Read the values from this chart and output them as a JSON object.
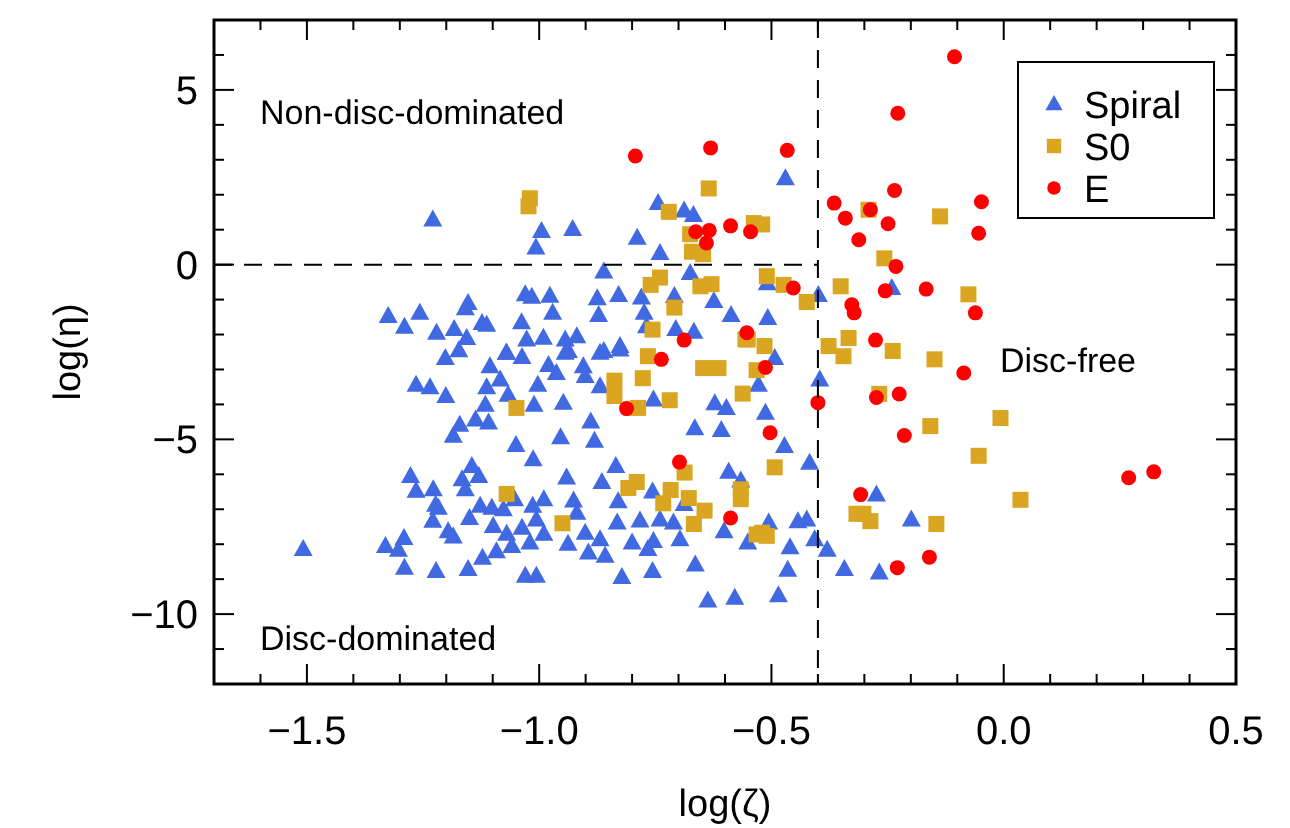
{
  "chart_data": {
    "type": "scatter",
    "xlabel": "log(ζ)",
    "ylabel": "log(η)",
    "xlim": [
      -1.7,
      0.5
    ],
    "ylim": [
      -12,
      7
    ],
    "xticks": [
      {
        "value": -1.6,
        "label": null
      },
      {
        "value": -1.5,
        "label": "−1.5"
      },
      {
        "value": -1.4,
        "label": null
      },
      {
        "value": -1.3,
        "label": null
      },
      {
        "value": -1.2,
        "label": null
      },
      {
        "value": -1.1,
        "label": null
      },
      {
        "value": -1.0,
        "label": "−1.0"
      },
      {
        "value": -0.9,
        "label": null
      },
      {
        "value": -0.8,
        "label": null
      },
      {
        "value": -0.7,
        "label": null
      },
      {
        "value": -0.6,
        "label": null
      },
      {
        "value": -0.5,
        "label": "−0.5"
      },
      {
        "value": -0.4,
        "label": null
      },
      {
        "value": -0.3,
        "label": null
      },
      {
        "value": -0.2,
        "label": null
      },
      {
        "value": -0.1,
        "label": null
      },
      {
        "value": 0,
        "label": "0.0"
      },
      {
        "value": 0.1,
        "label": null
      },
      {
        "value": 0.2,
        "label": null
      },
      {
        "value": 0.3,
        "label": null
      },
      {
        "value": 0.4,
        "label": null
      },
      {
        "value": 0.5,
        "label": "0.5"
      }
    ],
    "yticks": [
      {
        "value": -11,
        "label": null
      },
      {
        "value": -10,
        "label": "−10"
      },
      {
        "value": -9,
        "label": null
      },
      {
        "value": -8,
        "label": null
      },
      {
        "value": -7,
        "label": null
      },
      {
        "value": -6,
        "label": null
      },
      {
        "value": -5,
        "label": "−5"
      },
      {
        "value": -4,
        "label": null
      },
      {
        "value": -3,
        "label": null
      },
      {
        "value": -2,
        "label": null
      },
      {
        "value": -1,
        "label": null
      },
      {
        "value": 0,
        "label": "0"
      },
      {
        "value": 1,
        "label": null
      },
      {
        "value": 2,
        "label": null
      },
      {
        "value": 3,
        "label": null
      },
      {
        "value": 4,
        "label": null
      },
      {
        "value": 5,
        "label": "5"
      },
      {
        "value": 6,
        "label": null
      }
    ],
    "legend": "top right",
    "ref_lines": [
      {
        "axis": "x",
        "value": -0.4,
        "line_style": "dashed",
        "color": "#000000"
      },
      {
        "axis": "y",
        "value": 0,
        "line_style": "dashed",
        "color": "#000000"
      }
    ],
    "annotations": [
      "Non-disc-dominated",
      "Disc-dominated",
      "Disc-free"
    ],
    "series": [
      {
        "name": "Spiral",
        "color": "#4169e1",
        "marker": "triangle",
        "x": [
          -1.229,
          -0.995,
          -1.007,
          -0.928,
          -0.744,
          -0.688,
          -0.668,
          -0.789,
          -0.74,
          -0.861,
          -0.675,
          -1.03,
          -0.977,
          -0.875,
          -0.829,
          -0.78,
          -1.153,
          -1.325,
          -1.29,
          -1.257,
          -1.221,
          -1.183,
          -1.159,
          -1.123,
          -1.113,
          -1.038,
          -1.016,
          -0.971,
          -0.872,
          -0.774,
          -0.769,
          -0.706,
          -0.667,
          -0.587,
          -0.624,
          -0.709,
          -1.156,
          -1.027,
          -0.991,
          -0.944,
          -0.919,
          -0.861,
          -0.826,
          -1.07,
          -0.937,
          -0.47,
          -0.509,
          -0.399,
          -0.241,
          -0.508,
          -1.202,
          -1.173,
          -1.106,
          -1.071,
          -1.037,
          -0.98,
          -0.944,
          -0.905,
          -0.869,
          -0.826,
          -1.265,
          -1.235,
          -1.201,
          -1.113,
          -1.084,
          -1.067,
          -1.003,
          -0.963,
          -0.901,
          -0.869,
          -1.116,
          -1.011,
          -0.948,
          -1.171,
          -1.137,
          -1.109,
          -1.185,
          -1.05,
          -1.013,
          -0.954,
          -0.889,
          -0.881,
          -0.754,
          -0.665,
          -0.622,
          -0.608,
          -0.597,
          -1.277,
          -1.265,
          -1.228,
          -1.166,
          -1.145,
          -1.13,
          -1.159,
          -1.223,
          -1.217,
          -1.127,
          -1.102,
          -1.077,
          -1.053,
          -1.014,
          -0.99,
          -0.941,
          -0.926,
          -0.919,
          -0.865,
          -0.835,
          -0.83,
          -0.756,
          -0.688,
          -0.592,
          -0.566,
          -1.229,
          -1.196,
          -1.15,
          -1.099,
          -1.07,
          -1.037,
          -1.006,
          -0.99,
          -1.02,
          -1.059,
          -1.092,
          -1.122,
          -1.185,
          -1.291,
          -1.331,
          -1.303,
          -1.508,
          -1.29,
          -1.222,
          -1.153,
          -1.03,
          -1.006,
          -0.938,
          -0.901,
          -0.869,
          -0.894,
          -0.858,
          -0.822,
          -0.832,
          -0.783,
          -0.74,
          -0.711,
          -0.8,
          -0.754,
          -0.697,
          -0.766,
          -0.756,
          -0.664,
          -0.602,
          -0.637,
          -0.579,
          -0.551,
          -0.396,
          -0.528,
          -0.513,
          -0.472,
          -0.418,
          -0.274,
          -0.506,
          -0.443,
          -0.424,
          -0.199,
          -0.46,
          -0.407,
          -0.38,
          -0.465,
          -0.343,
          -0.268,
          -0.485,
          -0.493
        ],
        "values": [
          1.29,
          0.96,
          0.49,
          1.02,
          1.76,
          1.55,
          1.42,
          0.77,
          0.33,
          -0.2,
          -0.24,
          -0.85,
          -0.89,
          -0.96,
          -0.87,
          -0.94,
          -1.1,
          -1.47,
          -1.78,
          -1.38,
          -1.95,
          -1.84,
          -1.25,
          -1.67,
          -1.72,
          -1.65,
          -0.92,
          -1.38,
          -1.44,
          -1.38,
          -1.76,
          -1.84,
          -1.92,
          -1.44,
          -1.04,
          -0.9,
          -2.1,
          -2.14,
          -2.09,
          -2.14,
          -2.05,
          -2.47,
          -2.33,
          -2.52,
          -2.47,
          2.47,
          -0.53,
          -0.87,
          -0.67,
          -1.53,
          -2.67,
          -2.45,
          -2.91,
          -2.52,
          -2.64,
          -2.87,
          -2.52,
          -2.91,
          -2.52,
          -2.43,
          -3.44,
          -3.51,
          -3.76,
          -3.51,
          -3.29,
          -3.72,
          -3.44,
          -3.1,
          -3.19,
          -3.48,
          -4.01,
          -4.01,
          -3.95,
          -4.58,
          -4.43,
          -4.52,
          -4.9,
          -5.16,
          -5.57,
          -4.94,
          -4.49,
          -5.04,
          -3.86,
          -4.68,
          -3.97,
          -4.73,
          -4.1,
          -6.05,
          -6.47,
          -6.43,
          -6.14,
          -5.76,
          -6.05,
          -6.43,
          -6.87,
          -6.96,
          -6.9,
          -6.96,
          -7.0,
          -6.71,
          -6.9,
          -6.71,
          -6.09,
          -6.75,
          -7.1,
          -6.22,
          -5.76,
          -6.77,
          -6.49,
          -6.85,
          -5.93,
          -6.18,
          -7.33,
          -7.63,
          -7.25,
          -7.48,
          -7.7,
          -7.53,
          -7.29,
          -7.7,
          -7.95,
          -8.05,
          -8.2,
          -8.39,
          -7.78,
          -7.82,
          -8.05,
          -8.16,
          -8.14,
          -8.67,
          -8.77,
          -8.71,
          -8.9,
          -8.9,
          -7.99,
          -7.67,
          -7.86,
          -8.24,
          -8.33,
          -8.94,
          -7.38,
          -7.32,
          -7.29,
          -7.38,
          -7.95,
          -7.91,
          -7.86,
          -8.14,
          -8.77,
          -8.58,
          -7.63,
          -9.61,
          -9.53,
          -7.95,
          -3.29,
          -3.44,
          -4.24,
          -5.19,
          -5.67,
          -6.58,
          -7.38,
          -7.34,
          -7.29,
          -7.29,
          -8.09,
          -7.86,
          -8.16,
          -8.73,
          -8.71,
          -8.81,
          -9.46,
          -2.67
        ]
      },
      {
        "name": "S0",
        "color": "#daa520",
        "marker": "square",
        "x": [
          -1.02,
          -1.023,
          -0.635,
          -0.721,
          -0.675,
          -0.671,
          -0.647,
          -0.538,
          -0.74,
          -0.76,
          -0.653,
          -0.629,
          -0.709,
          -0.756,
          -0.556,
          -0.766,
          -0.52,
          -0.291,
          -0.137,
          -0.257,
          -0.51,
          -0.474,
          -0.424,
          -0.351,
          -0.076,
          -0.551,
          -0.515,
          -0.377,
          -0.334,
          -0.239,
          -0.149,
          -0.345,
          -0.838,
          -0.777,
          -0.838,
          -0.787,
          -0.719,
          -0.647,
          -0.614,
          -0.532,
          -0.562,
          -1.049,
          -1.07,
          -0.95,
          -0.808,
          -0.79,
          -0.733,
          -0.717,
          -0.687,
          -0.678,
          -0.644,
          -0.667,
          -0.566,
          -0.566,
          -0.532,
          -0.268,
          -0.158,
          -0.007,
          -0.054,
          0.036,
          -0.317,
          -0.302,
          -0.287,
          -0.145,
          -0.493,
          -0.52,
          -0.51
        ],
        "values": [
          1.9,
          1.67,
          2.18,
          1.51,
          0.87,
          0.37,
          0.3,
          1.19,
          -0.37,
          -0.58,
          -0.62,
          -0.56,
          -1.23,
          -1.86,
          -2.14,
          -2.62,
          1.15,
          1.57,
          1.38,
          0.18,
          -0.33,
          -0.58,
          -1.07,
          -0.62,
          -0.85,
          -2.14,
          -2.33,
          -2.33,
          -2.1,
          -2.47,
          -2.71,
          -2.62,
          -3.32,
          -3.25,
          -3.76,
          -4.1,
          -3.88,
          -2.96,
          -2.96,
          -3.02,
          -3.69,
          -4.1,
          -6.56,
          -7.4,
          -6.39,
          -6.22,
          -6.83,
          -6.45,
          -5.95,
          -6.68,
          -7.04,
          -7.42,
          -6.43,
          -6.71,
          -7.72,
          -3.7,
          -4.62,
          -4.39,
          -5.47,
          -6.73,
          -7.13,
          -7.13,
          -7.34,
          -7.42,
          -5.8,
          -7.67,
          -7.76
        ]
      },
      {
        "name": "E",
        "color": "#ff0000",
        "marker": "circle",
        "x": [
          -0.793,
          -0.631,
          -0.663,
          -0.634,
          -0.64,
          -0.588,
          -0.545,
          -0.553,
          -0.688,
          -0.737,
          -0.106,
          -0.228,
          -0.466,
          -0.365,
          -0.341,
          -0.312,
          -0.287,
          -0.249,
          -0.235,
          -0.048,
          -0.054,
          -0.232,
          -0.453,
          -0.255,
          -0.167,
          -0.327,
          -0.322,
          -0.061,
          -0.276,
          -0.812,
          -0.698,
          -0.588,
          -0.513,
          -0.4,
          -0.503,
          -0.086,
          -0.274,
          -0.225,
          -0.214,
          0.269,
          0.323,
          -0.308,
          -0.229,
          -0.16
        ],
        "values": [
          3.11,
          3.34,
          0.94,
          0.98,
          0.62,
          1.11,
          0.94,
          -1.95,
          -2.16,
          -2.71,
          5.95,
          4.33,
          3.27,
          1.76,
          1.33,
          0.71,
          1.57,
          1.17,
          2.12,
          1.8,
          0.9,
          -0.05,
          -0.67,
          -0.75,
          -0.7,
          -1.15,
          -1.38,
          -1.38,
          -2.16,
          -4.12,
          -5.65,
          -7.25,
          -2.94,
          -3.95,
          -4.81,
          -3.1,
          -3.8,
          -3.7,
          -4.89,
          -6.1,
          -5.93,
          -6.58,
          -8.67,
          -8.37
        ]
      }
    ]
  }
}
